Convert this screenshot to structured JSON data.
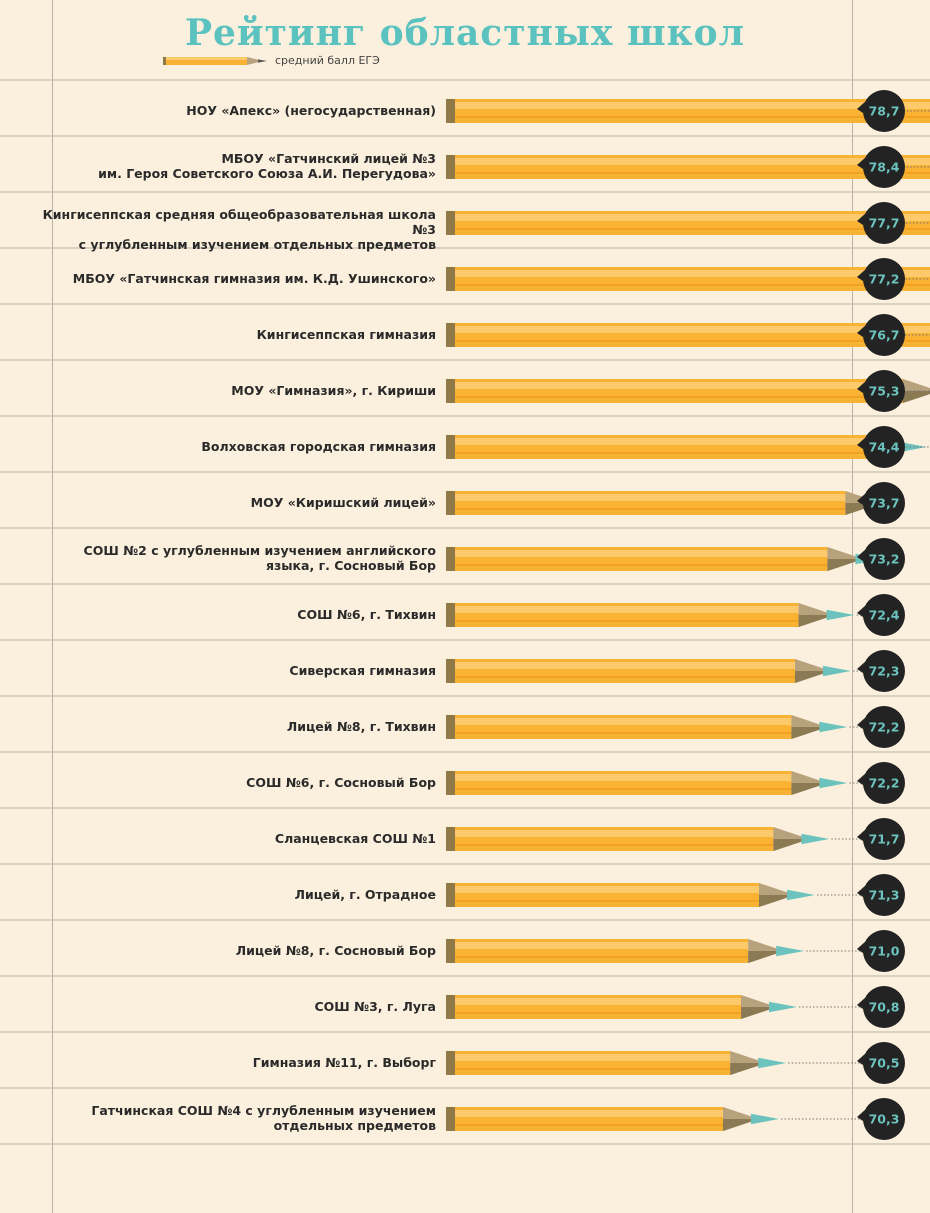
{
  "title": "Рейтинг областных школ",
  "legend_label": "средний балл ЕГЭ",
  "chart_data": {
    "type": "bar",
    "title": "Рейтинг областных школ",
    "series_name": "средний балл ЕГЭ",
    "categories": [
      "НОУ «Апекс» (негосударственная)",
      "МБОУ «Гатчинский лицей №3\nим. Героя Советского Союза А.И. Перегудова»",
      "Кингисеппская средняя общеобразовательная школа №3\nс углубленным изучением отдельных предметов",
      "МБОУ «Гатчинская гимназия им. К.Д. Ушинского»",
      "Кингисеппская гимназия",
      "МОУ «Гимназия», г. Кириши",
      "Волховская городская гимназия",
      "МОУ «Киришский лицей»",
      "СОШ №2 с углубленным изучением английского\nязыка, г. Сосновый Бор",
      "СОШ №6, г. Тихвин",
      "Сиверская гимназия",
      "Лицей №8, г. Тихвин",
      "СОШ №6, г. Сосновый Бор",
      "Сланцевская СОШ №1",
      "Лицей, г. Отрадное",
      "Лицей №8, г. Сосновый Бор",
      "СОШ №3, г. Луга",
      "Гимназия №11, г. Выборг",
      "Гатчинская СОШ №4 с углубленным изучением\nотдельных предметов"
    ],
    "values": [
      78.7,
      78.4,
      77.7,
      77.2,
      76.7,
      75.3,
      74.4,
      73.7,
      73.2,
      72.4,
      72.3,
      72.2,
      72.2,
      71.7,
      71.3,
      71.0,
      70.8,
      70.5,
      70.3
    ],
    "value_labels": [
      "78,7",
      "78,4",
      "77,7",
      "77,2",
      "76,7",
      "75,3",
      "74,4",
      "73,7",
      "73,2",
      "72,4",
      "72,3",
      "72,2",
      "72,2",
      "71,7",
      "71,3",
      "71,0",
      "70,8",
      "70,5",
      "70,3"
    ],
    "colors": {
      "pencil_body": "#f9b233",
      "pencil_stripe": "#fcc96b",
      "pencil_end": "#8f7a47",
      "wood": "#b8a27d",
      "wood_shade": "#8c7a55",
      "lead": "#6cc3be",
      "badge": "#232323",
      "badge_text": "#6cc3be"
    }
  }
}
